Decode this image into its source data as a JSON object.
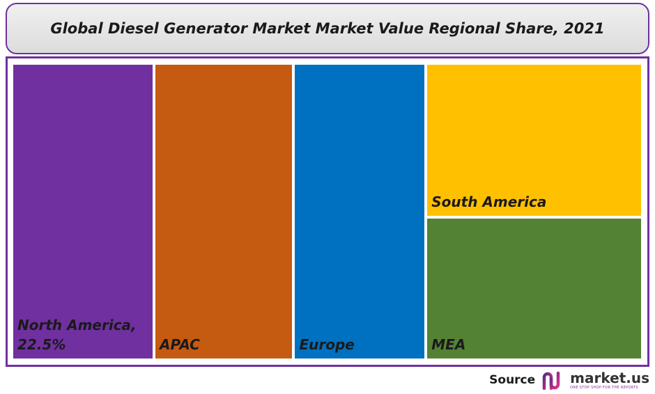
{
  "title": "Global Diesel Generator Market Market Value Regional Share, 2021",
  "chart_data": {
    "type": "treemap",
    "title": "Global Diesel Generator Market Market Value Regional Share, 2021",
    "unit": "%",
    "items": [
      {
        "name": "North America",
        "value_label": "22.5%",
        "value": 22.5,
        "color": "#7030a0"
      },
      {
        "name": "APAC",
        "value": 22.1,
        "color": "#c55a11"
      },
      {
        "name": "Europe",
        "value": 20.9,
        "color": "#0070c0"
      },
      {
        "name": "South America",
        "value": 17.9,
        "color": "#ffc000"
      },
      {
        "name": "MEA",
        "value": 16.6,
        "color": "#548235"
      }
    ]
  },
  "source": {
    "label": "Source",
    "brand": "market.us",
    "tagline": "ONE STOP SHOP FOR THE REPORTS",
    "logo_icon": "market-us-logo-icon"
  },
  "colors": {
    "frame": "#7030a0"
  }
}
